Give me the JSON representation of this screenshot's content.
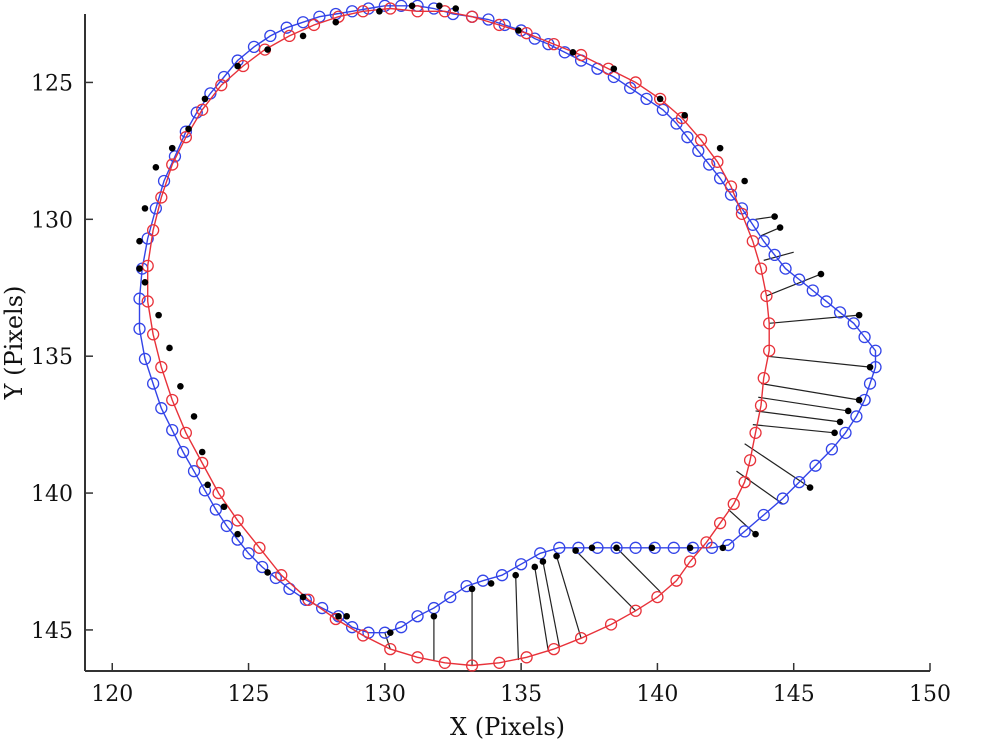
{
  "chart_data": {
    "type": "scatter",
    "title": "",
    "xlabel": "X (Pixels)",
    "ylabel": "Y (Pixels)",
    "xlim": [
      119,
      150
    ],
    "ylim": [
      122.5,
      146.5
    ],
    "y_inverted": true,
    "grid": false,
    "x_ticks": [
      "120",
      "125",
      "130",
      "135",
      "140",
      "145",
      "150"
    ],
    "y_ticks": [
      "125",
      "130",
      "135",
      "140",
      "145"
    ],
    "colors": {
      "inner_contour": "#e8323a",
      "outer_contour": "#3344e8",
      "matched_points": "#000000",
      "correspondence_lines": "#222222",
      "axes": "#333333"
    },
    "series": [
      {
        "marker": "open-circle",
        "color": "#3344e8",
        "x": [
          130.6,
          131.2,
          131.8,
          132.5,
          133.2,
          133.8,
          134.4,
          135.0,
          135.5,
          136.0,
          136.6,
          137.2,
          137.8,
          138.4,
          139.0,
          139.6,
          140.2,
          140.7,
          141.1,
          141.5,
          141.9,
          142.3,
          142.7,
          143.1,
          143.5,
          143.9,
          144.3,
          144.7,
          145.2,
          145.7,
          146.2,
          146.7,
          147.2,
          147.6,
          148.0,
          148.0,
          147.8,
          147.6,
          147.3,
          146.9,
          146.4,
          145.8,
          145.2,
          144.6,
          143.9,
          143.2,
          142.6,
          142.0,
          141.3,
          140.6,
          139.9,
          139.2,
          138.5,
          137.8,
          137.1,
          136.4,
          135.7,
          135.0,
          134.3,
          133.6,
          133.0,
          132.4,
          131.8,
          131.2,
          130.6,
          130.0,
          129.4,
          128.8,
          128.3,
          127.7,
          127.1,
          126.5,
          126.0,
          125.5,
          125.0,
          124.6,
          124.2,
          123.8,
          123.4,
          123.0,
          122.6,
          122.2,
          121.8,
          121.5,
          121.2,
          121.0,
          121.0,
          121.1,
          121.3,
          121.6,
          121.9,
          122.3,
          122.7,
          123.1,
          123.6,
          124.1,
          124.6,
          125.2,
          125.8,
          126.4,
          127.0,
          127.6,
          128.2,
          128.8,
          129.4,
          130.0
        ],
        "y": [
          122.2,
          122.2,
          122.3,
          122.5,
          122.6,
          122.7,
          122.9,
          123.1,
          123.4,
          123.6,
          123.9,
          124.2,
          124.5,
          124.8,
          125.2,
          125.6,
          126.0,
          126.5,
          127.0,
          127.5,
          128.0,
          128.5,
          129.1,
          129.6,
          130.2,
          130.8,
          131.3,
          131.8,
          132.2,
          132.6,
          133.0,
          133.4,
          133.8,
          134.3,
          134.8,
          135.4,
          136.0,
          136.6,
          137.2,
          137.8,
          138.4,
          139.0,
          139.6,
          140.2,
          140.8,
          141.4,
          141.9,
          142.0,
          142.0,
          142.0,
          142.0,
          142.0,
          142.0,
          142.0,
          142.0,
          142.0,
          142.2,
          142.6,
          143.0,
          143.2,
          143.4,
          143.8,
          144.2,
          144.5,
          144.9,
          145.1,
          145.1,
          144.9,
          144.5,
          144.2,
          143.9,
          143.5,
          143.1,
          142.7,
          142.2,
          141.7,
          141.2,
          140.6,
          139.9,
          139.2,
          138.5,
          137.7,
          136.9,
          136.0,
          135.1,
          134.0,
          132.9,
          131.8,
          130.7,
          129.6,
          128.6,
          127.7,
          126.8,
          126.1,
          125.4,
          124.8,
          124.2,
          123.7,
          123.3,
          123.0,
          122.8,
          122.6,
          122.5,
          122.4,
          122.3,
          122.2
        ]
      },
      {
        "marker": "open-circle",
        "color": "#e8323a",
        "x": [
          131.2,
          132.2,
          133.2,
          134.2,
          135.2,
          136.2,
          137.2,
          138.2,
          139.2,
          140.1,
          140.9,
          141.6,
          142.2,
          142.7,
          143.1,
          143.5,
          143.8,
          144.0,
          144.1,
          144.1,
          143.9,
          143.8,
          143.6,
          143.4,
          143.2,
          142.8,
          142.3,
          141.8,
          141.2,
          140.7,
          140.0,
          139.2,
          138.3,
          137.2,
          136.2,
          135.2,
          134.2,
          133.2,
          132.2,
          131.2,
          130.2,
          129.2,
          128.2,
          127.2,
          126.2,
          125.4,
          124.6,
          123.9,
          123.3,
          122.7,
          122.2,
          121.8,
          121.5,
          121.3,
          121.3,
          121.5,
          121.8,
          122.2,
          122.7,
          123.3,
          124.0,
          124.8,
          125.6,
          126.5,
          127.4,
          128.3,
          129.2,
          130.2
        ],
        "y": [
          122.4,
          122.4,
          122.6,
          122.9,
          123.2,
          123.6,
          124.0,
          124.5,
          125.0,
          125.6,
          126.3,
          127.1,
          127.9,
          128.8,
          129.8,
          130.8,
          131.8,
          132.8,
          133.8,
          134.8,
          135.8,
          136.8,
          137.8,
          138.8,
          139.6,
          140.4,
          141.1,
          141.8,
          142.5,
          143.2,
          143.8,
          144.3,
          144.8,
          145.3,
          145.7,
          146.0,
          146.2,
          146.3,
          146.2,
          146.0,
          145.7,
          145.2,
          144.6,
          143.9,
          143.0,
          142.0,
          141.0,
          140.0,
          138.9,
          137.8,
          136.6,
          135.4,
          134.2,
          133.0,
          131.7,
          130.4,
          129.2,
          128.0,
          127.0,
          126.0,
          125.1,
          124.4,
          123.8,
          123.3,
          122.9,
          122.6,
          122.4,
          122.3
        ]
      },
      {
        "marker": "filled-circle",
        "color": "#000000",
        "x": [
          131.0,
          132.0,
          132.6,
          134.9,
          136.9,
          138.4,
          140.1,
          141.0,
          142.3,
          143.2,
          144.3,
          144.5,
          146.0,
          147.4,
          147.8,
          147.4,
          147.0,
          146.7,
          146.5,
          145.6,
          143.6,
          142.4,
          141.2,
          139.8,
          138.5,
          137.6,
          137.0,
          136.3,
          135.8,
          135.5,
          134.8,
          133.9,
          133.2,
          131.8,
          130.2,
          128.6,
          128.3,
          127.0,
          125.7,
          124.6,
          124.1,
          123.5,
          123.3,
          123.0,
          122.5,
          122.1,
          121.7,
          121.2,
          121.0,
          121.0,
          121.2,
          121.6,
          122.2,
          122.8,
          123.4,
          124.6,
          125.7,
          127.0,
          128.2,
          129.8
        ],
        "y": [
          122.2,
          122.2,
          122.3,
          123.1,
          123.9,
          124.5,
          125.6,
          126.2,
          127.4,
          128.6,
          129.9,
          130.3,
          132.0,
          133.5,
          135.4,
          136.6,
          137.0,
          137.4,
          137.8,
          139.8,
          141.5,
          142.0,
          142.0,
          142.0,
          142.0,
          142.0,
          142.1,
          142.3,
          142.5,
          142.7,
          143.0,
          143.3,
          143.5,
          144.5,
          145.1,
          144.5,
          144.5,
          143.8,
          142.9,
          141.5,
          140.5,
          139.7,
          138.5,
          137.2,
          136.1,
          134.7,
          133.5,
          132.3,
          131.8,
          130.8,
          129.6,
          128.1,
          127.4,
          126.7,
          125.6,
          124.4,
          123.8,
          123.3,
          122.8,
          122.4
        ]
      }
    ],
    "correspondences": [
      [
        [
          143.6,
          130.0
        ],
        [
          144.3,
          129.9
        ]
      ],
      [
        [
          143.8,
          130.6
        ],
        [
          144.5,
          130.3
        ]
      ],
      [
        [
          143.9,
          131.5
        ],
        [
          145.0,
          131.2
        ]
      ],
      [
        [
          144.0,
          132.8
        ],
        [
          146.0,
          132.0
        ]
      ],
      [
        [
          144.1,
          133.8
        ],
        [
          147.4,
          133.5
        ]
      ],
      [
        [
          144.0,
          135.0
        ],
        [
          147.8,
          135.4
        ]
      ],
      [
        [
          143.8,
          136.0
        ],
        [
          147.4,
          136.6
        ]
      ],
      [
        [
          143.7,
          136.5
        ],
        [
          147.0,
          137.0
        ]
      ],
      [
        [
          143.6,
          137.0
        ],
        [
          146.7,
          137.4
        ]
      ],
      [
        [
          143.5,
          137.5
        ],
        [
          146.5,
          137.8
        ]
      ],
      [
        [
          143.2,
          138.2
        ],
        [
          145.6,
          139.8
        ]
      ],
      [
        [
          142.9,
          139.2
        ],
        [
          144.6,
          140.4
        ]
      ],
      [
        [
          142.6,
          140.6
        ],
        [
          143.6,
          141.5
        ]
      ],
      [
        [
          140.1,
          143.6
        ],
        [
          138.5,
          142.0
        ]
      ],
      [
        [
          139.2,
          144.3
        ],
        [
          137.0,
          142.1
        ]
      ],
      [
        [
          137.2,
          145.3
        ],
        [
          136.3,
          142.3
        ]
      ],
      [
        [
          136.4,
          145.6
        ],
        [
          135.8,
          142.5
        ]
      ],
      [
        [
          136.0,
          145.8
        ],
        [
          135.5,
          142.7
        ]
      ],
      [
        [
          134.9,
          146.1
        ],
        [
          134.8,
          143.0
        ]
      ],
      [
        [
          133.2,
          146.3
        ],
        [
          133.2,
          143.5
        ]
      ],
      [
        [
          131.8,
          146.1
        ],
        [
          131.8,
          144.5
        ]
      ],
      [
        [
          130.2,
          145.7
        ],
        [
          130.0,
          145.1
        ]
      ]
    ]
  },
  "axes": {
    "x_title": "X (Pixels)",
    "y_title": "Y (Pixels)"
  }
}
